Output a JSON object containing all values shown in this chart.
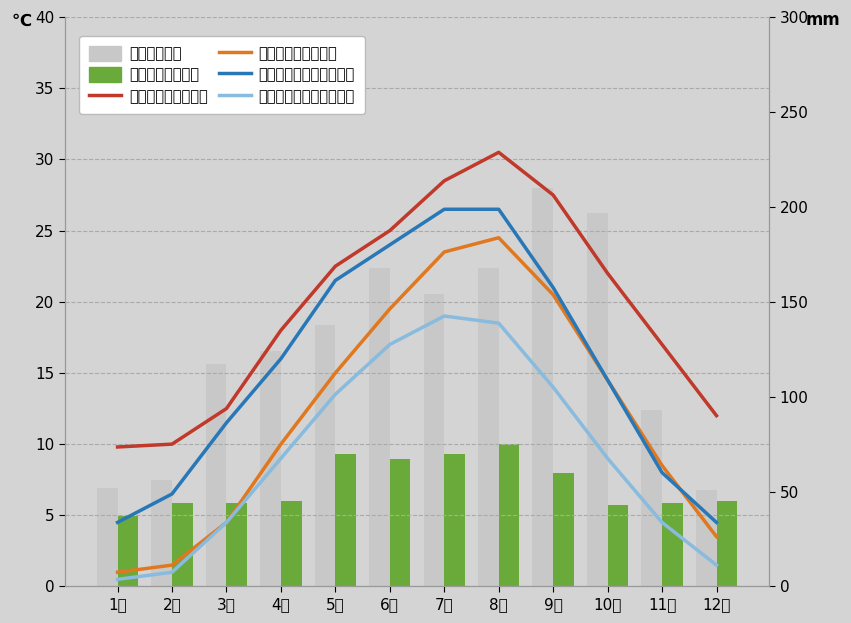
{
  "months": [
    "1月",
    "2月",
    "3月",
    "4月",
    "5月",
    "6月",
    "7月",
    "8月",
    "9月",
    "10月",
    "11月",
    "12月"
  ],
  "tokyo_precip": [
    52,
    56,
    117,
    124,
    138,
    168,
    154,
    168,
    210,
    197,
    93,
    51
  ],
  "vienna_precip": [
    37,
    44,
    44,
    45,
    70,
    67,
    70,
    75,
    60,
    43,
    44,
    45
  ],
  "tokyo_max": [
    9.8,
    10.0,
    12.5,
    18.0,
    22.5,
    25.0,
    28.5,
    30.5,
    27.5,
    22.0,
    17.0,
    12.0
  ],
  "tokyo_min": [
    1.0,
    1.5,
    4.5,
    10.0,
    15.0,
    19.5,
    23.5,
    24.5,
    20.5,
    14.5,
    8.5,
    3.5
  ],
  "vienna_max": [
    4.5,
    6.5,
    11.5,
    16.0,
    21.5,
    24.0,
    26.5,
    26.5,
    21.0,
    14.5,
    8.0,
    4.5
  ],
  "vienna_min": [
    0.5,
    1.0,
    4.5,
    9.0,
    13.5,
    17.0,
    19.0,
    18.5,
    14.0,
    9.0,
    4.5,
    1.5
  ],
  "tokyo_precip_color": "#c8c8c8",
  "vienna_precip_color": "#6aaa3a",
  "tokyo_max_color": "#c0392b",
  "tokyo_min_color": "#e07820",
  "vienna_max_color": "#2878b8",
  "vienna_min_color": "#88bbdd",
  "bg_color": "#d4d4d4",
  "plot_bg_color": "#ffffff",
  "temp_ylim": [
    0,
    40
  ],
  "precip_ylim": [
    0,
    300
  ],
  "temp_yticks": [
    0,
    5,
    10,
    15,
    20,
    25,
    30,
    35,
    40
  ],
  "precip_yticks": [
    0,
    50,
    100,
    150,
    200,
    250,
    300
  ],
  "legend_tokyo_precip": "東京の降水量",
  "legend_vienna_precip": "ウィーンの降水量",
  "legend_tokyo_max": "東京の平均最高気温",
  "legend_tokyo_min": "東京の平均最低気温",
  "legend_vienna_max": "ウィーンの平均最高気温",
  "legend_vienna_min": "ウィーンの平均最低気温",
  "ylabel_left": "℃",
  "ylabel_right": "mm",
  "line_width": 2.5
}
